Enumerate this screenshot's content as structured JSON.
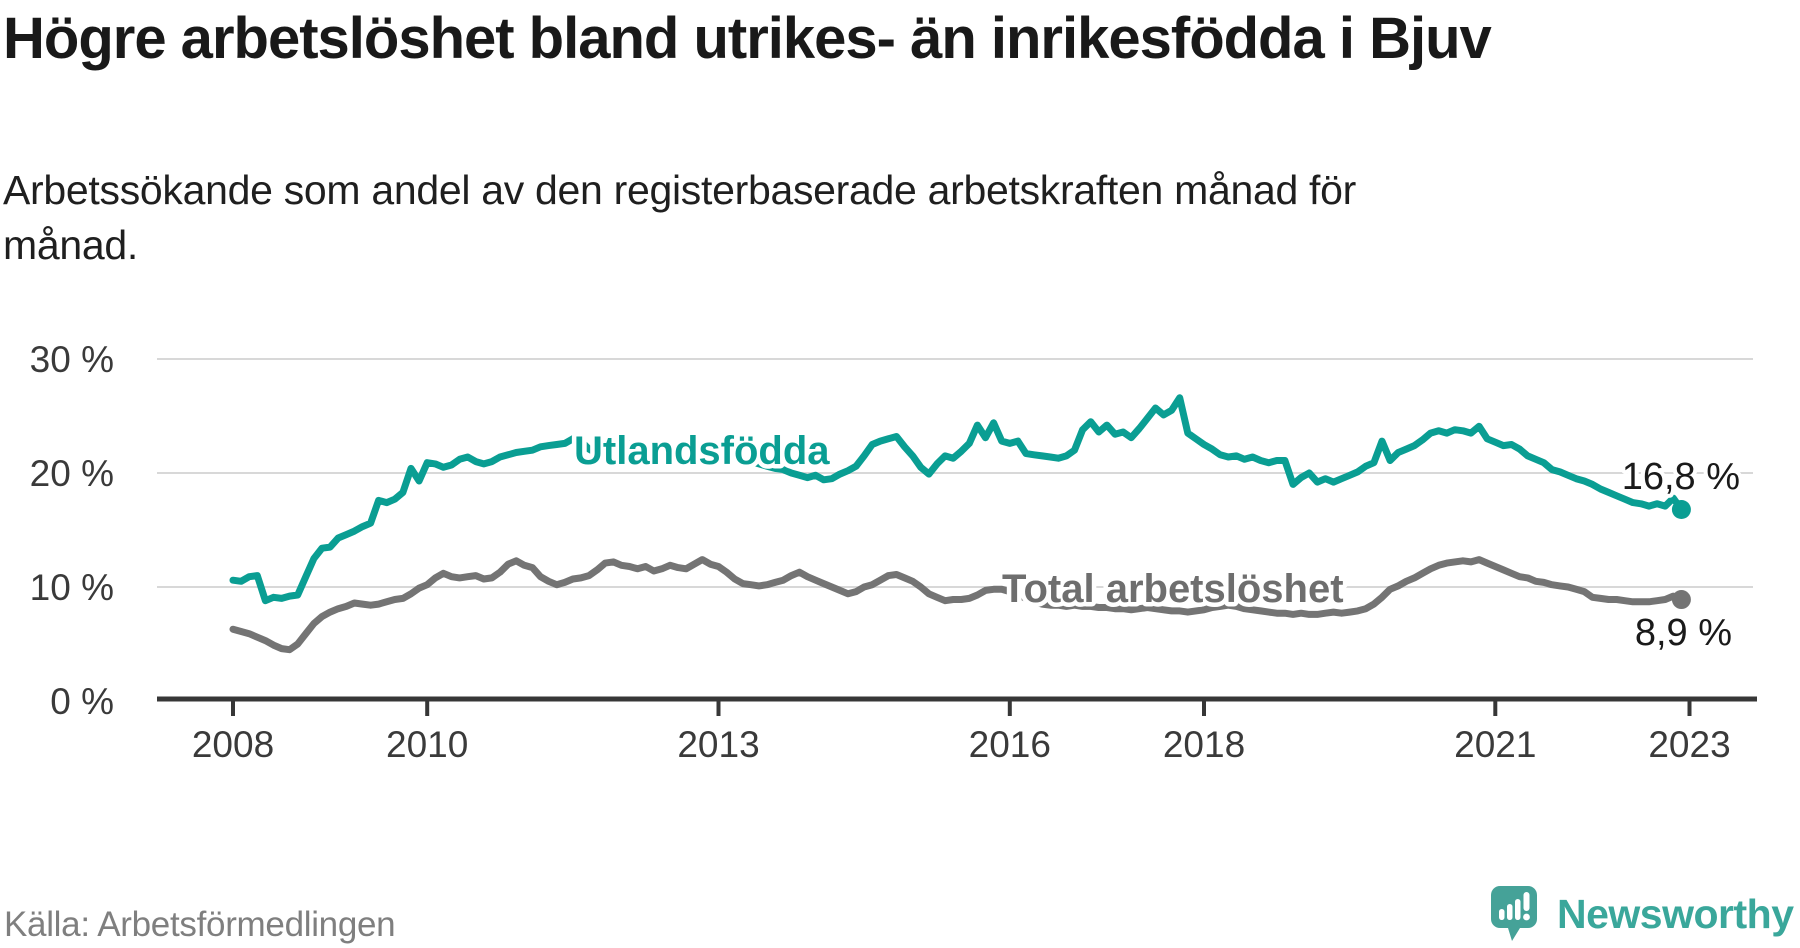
{
  "header": {
    "title": "Högre arbetslöshet bland utrikes- än inrikesfödda i Bjuv",
    "subtitle": "Arbetssökande som andel av den registerbaserade arbetskraften månad för månad."
  },
  "footer": {
    "source": "Källa: Arbetsförmedlingen",
    "brand": "Newsworthy"
  },
  "colors": {
    "foreign_born_line": "#0a9e93",
    "total_line": "#747474",
    "total_label": "#6e6e6e",
    "axis": "#373737",
    "gridline": "#d8d8d8",
    "logo_teal": "#45a298"
  },
  "chart_data": {
    "type": "line",
    "title": "Högre arbetslöshet bland utrikes- än inrikesfödda i Bjuv",
    "subtitle": "Arbetssökande som andel av den registerbaserade arbetskraften månad för månad.",
    "xlabel": "",
    "ylabel": "",
    "x_start_year": 2008,
    "x_step": "month",
    "x_tick_years": [
      "2008",
      "2010",
      "2013",
      "2016",
      "2018",
      "2021",
      "2023"
    ],
    "y_ticks": [
      {
        "value": 0,
        "label": "0 %"
      },
      {
        "value": 10,
        "label": "10 %"
      },
      {
        "value": 20,
        "label": "20 %"
      },
      {
        "value": 30,
        "label": "30 %"
      }
    ],
    "ylim": [
      0,
      30
    ],
    "grid": "horizontal",
    "legend": "inline-labels",
    "series": [
      {
        "name": "Utlandsfödda",
        "end_label": "16,8 %",
        "color": "#0a9e93",
        "label_color": "#0a9e93",
        "values": [
          10.6,
          10.5,
          10.9,
          11.0,
          8.8,
          9.1,
          9.0,
          9.2,
          9.3,
          10.9,
          12.5,
          13.4,
          13.5,
          14.3,
          14.6,
          14.9,
          15.3,
          15.6,
          17.6,
          17.4,
          17.7,
          18.3,
          20.4,
          19.3,
          20.9,
          20.8,
          20.5,
          20.7,
          21.2,
          21.4,
          21.0,
          20.8,
          21.0,
          21.4,
          21.6,
          21.8,
          21.9,
          22.0,
          22.3,
          22.4,
          22.5,
          22.6,
          23.0,
          22.8,
          22.1,
          21.7,
          22.3,
          22.8,
          22.7,
          22.5,
          22.3,
          22.0,
          21.8,
          21.6,
          21.8,
          21.9,
          21.7,
          21.5,
          21.3,
          21.2,
          21.2,
          21.3,
          21.4,
          21.2,
          21.0,
          20.8,
          20.6,
          20.4,
          20.3,
          20.0,
          19.8,
          19.6,
          19.8,
          19.4,
          19.5,
          19.9,
          20.2,
          20.6,
          21.5,
          22.5,
          22.8,
          23.0,
          23.2,
          22.3,
          21.5,
          20.5,
          19.9,
          20.8,
          21.5,
          21.3,
          21.9,
          22.6,
          24.2,
          23.1,
          24.4,
          22.8,
          22.6,
          22.8,
          21.7,
          21.6,
          21.5,
          21.4,
          21.3,
          21.5,
          22.0,
          23.8,
          24.5,
          23.6,
          24.2,
          23.4,
          23.6,
          23.1,
          23.9,
          24.8,
          25.7,
          25.1,
          25.5,
          26.6,
          23.5,
          23.0,
          22.5,
          22.1,
          21.6,
          21.4,
          21.5,
          21.2,
          21.4,
          21.1,
          20.9,
          21.1,
          21.1,
          19.0,
          19.6,
          20.0,
          19.2,
          19.5,
          19.2,
          19.5,
          19.8,
          20.1,
          20.6,
          20.9,
          22.8,
          21.1,
          21.8,
          22.1,
          22.4,
          22.9,
          23.5,
          23.7,
          23.5,
          23.8,
          23.7,
          23.5,
          24.1,
          23.0,
          22.7,
          22.4,
          22.5,
          22.1,
          21.5,
          21.2,
          20.9,
          20.3,
          20.1,
          19.8,
          19.5,
          19.3,
          19.0,
          18.6,
          18.3,
          18.0,
          17.7,
          17.4,
          17.3,
          17.1,
          17.3,
          17.1,
          17.8,
          16.8
        ]
      },
      {
        "name": "Total arbetslöshet",
        "end_label": "8,9 %",
        "color": "#747474",
        "label_color": "#6e6e6e",
        "values": [
          6.3,
          6.1,
          5.9,
          5.6,
          5.3,
          4.9,
          4.6,
          4.5,
          5.0,
          5.9,
          6.8,
          7.4,
          7.8,
          8.1,
          8.3,
          8.6,
          8.5,
          8.4,
          8.5,
          8.7,
          8.9,
          9.0,
          9.4,
          9.9,
          10.2,
          10.8,
          11.2,
          10.9,
          10.8,
          10.9,
          11.0,
          10.7,
          10.8,
          11.3,
          12.0,
          12.3,
          11.9,
          11.7,
          10.9,
          10.5,
          10.2,
          10.4,
          10.7,
          10.8,
          11.0,
          11.5,
          12.1,
          12.2,
          11.9,
          11.8,
          11.6,
          11.8,
          11.4,
          11.6,
          11.9,
          11.7,
          11.6,
          12.0,
          12.4,
          12.0,
          11.8,
          11.3,
          10.7,
          10.3,
          10.2,
          10.1,
          10.2,
          10.4,
          10.6,
          11.0,
          11.3,
          10.9,
          10.6,
          10.3,
          10.0,
          9.7,
          9.4,
          9.6,
          10.0,
          10.2,
          10.6,
          11.0,
          11.1,
          10.8,
          10.5,
          10.0,
          9.4,
          9.1,
          8.8,
          8.9,
          8.9,
          9.0,
          9.3,
          9.7,
          9.8,
          9.8,
          9.6,
          9.3,
          9.0,
          8.7,
          8.5,
          8.4,
          8.4,
          8.3,
          8.4,
          8.3,
          8.3,
          8.2,
          8.2,
          8.1,
          8.1,
          8.0,
          8.1,
          8.2,
          8.1,
          8.0,
          7.9,
          7.9,
          7.8,
          7.9,
          8.0,
          8.2,
          8.3,
          8.4,
          8.3,
          8.1,
          8.0,
          7.9,
          7.8,
          7.7,
          7.7,
          7.6,
          7.7,
          7.6,
          7.6,
          7.7,
          7.8,
          7.7,
          7.8,
          7.9,
          8.1,
          8.5,
          9.1,
          9.8,
          10.1,
          10.5,
          10.8,
          11.2,
          11.6,
          11.9,
          12.1,
          12.2,
          12.3,
          12.2,
          12.4,
          12.1,
          11.8,
          11.5,
          11.2,
          10.9,
          10.8,
          10.5,
          10.4,
          10.2,
          10.1,
          10.0,
          9.8,
          9.6,
          9.1,
          9.0,
          8.9,
          8.9,
          8.8,
          8.7,
          8.7,
          8.7,
          8.8,
          8.9,
          9.2,
          8.9
        ]
      }
    ]
  }
}
